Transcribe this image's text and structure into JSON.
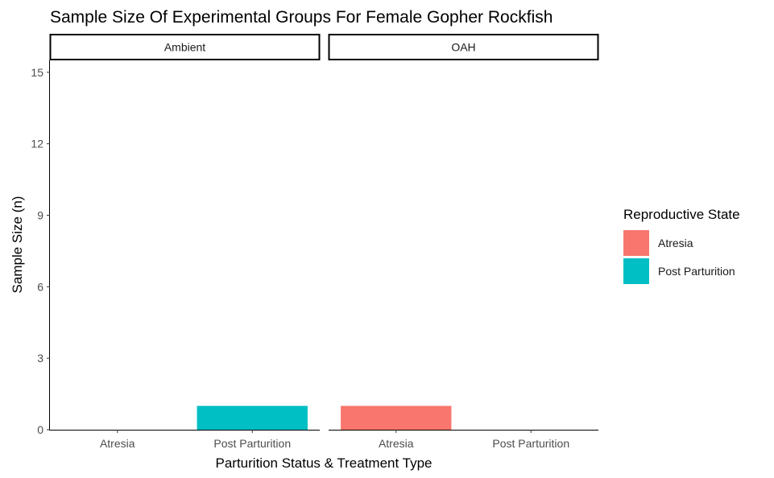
{
  "chart_data": {
    "type": "bar",
    "title": "Sample Size Of Experimental Groups For Female Gopher Rockfish",
    "xlabel": "Parturition Status & Treatment Type",
    "ylabel": "Sample Size (n)",
    "ylim": [
      0,
      15.5
    ],
    "yticks": [
      0,
      3,
      6,
      9,
      12,
      15
    ],
    "categories": [
      "Atresia",
      "Post Parturition"
    ],
    "facets": [
      {
        "label": "Ambient",
        "values": [
          0,
          1
        ]
      },
      {
        "label": "OAH",
        "values": [
          1,
          0
        ]
      }
    ],
    "legend": {
      "title": "Reproductive State",
      "position": "right",
      "entries": [
        {
          "label": "Atresia",
          "color": "#F8766D"
        },
        {
          "label": "Post Parturition",
          "color": "#00BFC4"
        }
      ]
    },
    "grid": false
  }
}
